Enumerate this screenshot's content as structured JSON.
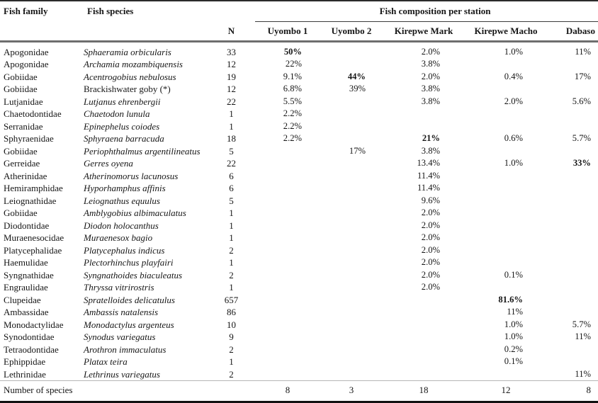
{
  "table": {
    "columns": {
      "family": "Fish family",
      "species": "Fish species",
      "n": "N",
      "group": "Fish composition per station",
      "stations": [
        "Uyombo 1",
        "Uyombo 2",
        "Kirepwe Mark",
        "Kirepwe Macho",
        "Dabaso"
      ]
    },
    "rows": [
      {
        "family": "Apogonidae",
        "species": "Sphaeramia orbicularis",
        "species_italic": true,
        "n": "33",
        "station_values": [
          "50%",
          "",
          "2.0%",
          "1.0%",
          "11%"
        ],
        "bold_station": 0
      },
      {
        "family": "Apogonidae",
        "species": "Archamia mozambiquensis",
        "species_italic": true,
        "n": "12",
        "station_values": [
          "22%",
          "",
          "3.8%",
          "",
          ""
        ],
        "bold_station": null
      },
      {
        "family": "Gobiidae",
        "species": "Acentrogobius nebulosus",
        "species_italic": true,
        "n": "19",
        "station_values": [
          "9.1%",
          "44%",
          "2.0%",
          "0.4%",
          "17%"
        ],
        "bold_station": 1
      },
      {
        "family": "Gobiidae",
        "species": "Brackishwater goby (*)",
        "species_italic": false,
        "n": "12",
        "station_values": [
          "6.8%",
          "39%",
          "3.8%",
          "",
          ""
        ],
        "bold_station": null
      },
      {
        "family": "Lutjanidae",
        "species": "Lutjanus ehrenbergii",
        "species_italic": true,
        "n": "22",
        "station_values": [
          "5.5%",
          "",
          "3.8%",
          "2.0%",
          "5.6%"
        ],
        "bold_station": null
      },
      {
        "family": "Chaetodontidae",
        "species": "Chaetodon lunula",
        "species_italic": true,
        "n": "1",
        "station_values": [
          "2.2%",
          "",
          "",
          "",
          ""
        ],
        "bold_station": null
      },
      {
        "family": "Serranidae",
        "species": "Epinephelus coiodes",
        "species_italic": true,
        "n": "1",
        "station_values": [
          "2.2%",
          "",
          "",
          "",
          ""
        ],
        "bold_station": null
      },
      {
        "family": "Sphyraenidae",
        "species": "Sphyraena barracuda",
        "species_italic": true,
        "n": "18",
        "station_values": [
          "2.2%",
          "",
          "21%",
          "0.6%",
          "5.7%"
        ],
        "bold_station": 2
      },
      {
        "family": "Gobiidae",
        "species": "Periophthalmus argentilineatus",
        "species_italic": true,
        "n": "5",
        "station_values": [
          "",
          "17%",
          "3.8%",
          "",
          ""
        ],
        "bold_station": null
      },
      {
        "family": "Gerreidae",
        "species": "Gerres oyena",
        "species_italic": true,
        "n": "22",
        "station_values": [
          "",
          "",
          "13.4%",
          "1.0%",
          "33%"
        ],
        "bold_station": 4
      },
      {
        "family": "Atherinidae",
        "species": "Atherinomorus lacunosus",
        "species_italic": true,
        "n": "6",
        "station_values": [
          "",
          "",
          "11.4%",
          "",
          ""
        ],
        "bold_station": null
      },
      {
        "family": "Hemiramphidae",
        "species": "Hyporhamphus affinis",
        "species_italic": true,
        "n": "6",
        "station_values": [
          "",
          "",
          "11.4%",
          "",
          ""
        ],
        "bold_station": null
      },
      {
        "family": "Leiognathidae",
        "species": "Leiognathus equulus",
        "species_italic": true,
        "n": "5",
        "station_values": [
          "",
          "",
          "9.6%",
          "",
          ""
        ],
        "bold_station": null
      },
      {
        "family": "Gobiidae",
        "species": "Amblygobius albimaculatus",
        "species_italic": true,
        "n": "1",
        "station_values": [
          "",
          "",
          "2.0%",
          "",
          ""
        ],
        "bold_station": null
      },
      {
        "family": "Diodontidae",
        "species": "Diodon holocanthus",
        "species_italic": true,
        "n": "1",
        "station_values": [
          "",
          "",
          "2.0%",
          "",
          ""
        ],
        "bold_station": null
      },
      {
        "family": "Muraenesocidae",
        "species": "Muraenesox bagio",
        "species_italic": true,
        "n": "1",
        "station_values": [
          "",
          "",
          "2.0%",
          "",
          ""
        ],
        "bold_station": null
      },
      {
        "family": "Platycephalidae",
        "species": "Platycephalus indicus",
        "species_italic": true,
        "n": "2",
        "station_values": [
          "",
          "",
          "2.0%",
          "",
          ""
        ],
        "bold_station": null
      },
      {
        "family": "Haemulidae",
        "species": "Plectorhinchus playfairi",
        "species_italic": true,
        "n": "1",
        "station_values": [
          "",
          "",
          "2.0%",
          "",
          ""
        ],
        "bold_station": null
      },
      {
        "family": "Syngnathidae",
        "species": "Syngnathoides biaculeatus",
        "species_italic": true,
        "n": "2",
        "station_values": [
          "",
          "",
          "2.0%",
          "0.1%",
          ""
        ],
        "bold_station": null
      },
      {
        "family": "Engraulidae",
        "species": "Thryssa vitrirostris",
        "species_italic": true,
        "n": "1",
        "station_values": [
          "",
          "",
          "2.0%",
          "",
          ""
        ],
        "bold_station": null
      },
      {
        "family": "Clupeidae",
        "species": "Spratelloides delicatulus",
        "species_italic": true,
        "n": "657",
        "station_values": [
          "",
          "",
          "",
          "81.6%",
          ""
        ],
        "bold_station": 3
      },
      {
        "family": "Ambassidae",
        "species": "Ambassis natalensis",
        "species_italic": true,
        "n": "86",
        "station_values": [
          "",
          "",
          "",
          "11%",
          ""
        ],
        "bold_station": null
      },
      {
        "family": "Monodactylidae",
        "species": "Monodactylus argenteus",
        "species_italic": true,
        "n": "10",
        "station_values": [
          "",
          "",
          "",
          "1.0%",
          "5.7%"
        ],
        "bold_station": null
      },
      {
        "family": "Synodontidae",
        "species": "Synodus variegatus",
        "species_italic": true,
        "n": "9",
        "station_values": [
          "",
          "",
          "",
          "1.0%",
          "11%"
        ],
        "bold_station": null
      },
      {
        "family": "Tetraodontidae",
        "species": "Arothron immaculatus",
        "species_italic": true,
        "n": "2",
        "station_values": [
          "",
          "",
          "",
          "0.2%",
          ""
        ],
        "bold_station": null
      },
      {
        "family": "Ephippidae",
        "species": "Platax teira",
        "species_italic": true,
        "n": "1",
        "station_values": [
          "",
          "",
          "",
          "0.1%",
          ""
        ],
        "bold_station": null
      },
      {
        "family": "Lethrinidae",
        "species": "Lethrinus variegatus",
        "species_italic": true,
        "n": "2",
        "station_values": [
          "",
          "",
          "",
          "",
          "11%"
        ],
        "bold_station": null
      }
    ],
    "footer": {
      "label": "Number of species",
      "values": [
        "8",
        "3",
        "18",
        "12",
        "8"
      ]
    }
  },
  "colors": {
    "background": "#ffffff",
    "text": "#161616",
    "rule_dark": "#2b2b2b",
    "rule_gray": "#6e6e6e",
    "rule_light": "#b5b5b5",
    "rule_bottom": "#111111"
  }
}
